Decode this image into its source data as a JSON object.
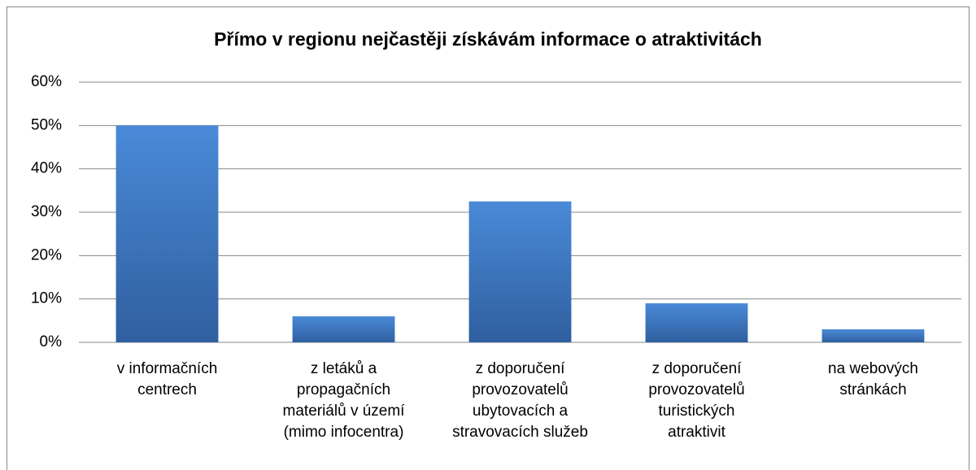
{
  "chart_data": {
    "type": "bar",
    "title": "Přímo v regionu nejčastěji získávám informace o atraktivitách",
    "categories": [
      "v informačních\ncentrech",
      "z letáků a\npropagačních\nmateriálů v území\n(mimo infocentra)",
      "z doporučení\nprovozovatelů\nubytovacích a\nstravovacích služeb",
      "z doporučení\nprovozovatelů\nturistických\natraktivit",
      "na webových\nstránkách"
    ],
    "values": [
      50,
      6,
      32.5,
      9,
      3
    ],
    "color": "#3f7bc8",
    "ylim": [
      0,
      60
    ],
    "yticks": [
      {
        "value": 0,
        "label": "0%"
      },
      {
        "value": 10,
        "label": "10%"
      },
      {
        "value": 20,
        "label": "20%"
      },
      {
        "value": 30,
        "label": "30%"
      },
      {
        "value": 40,
        "label": "40%"
      },
      {
        "value": 50,
        "label": "50%"
      },
      {
        "value": 60,
        "label": "60%"
      }
    ],
    "grid": true
  }
}
